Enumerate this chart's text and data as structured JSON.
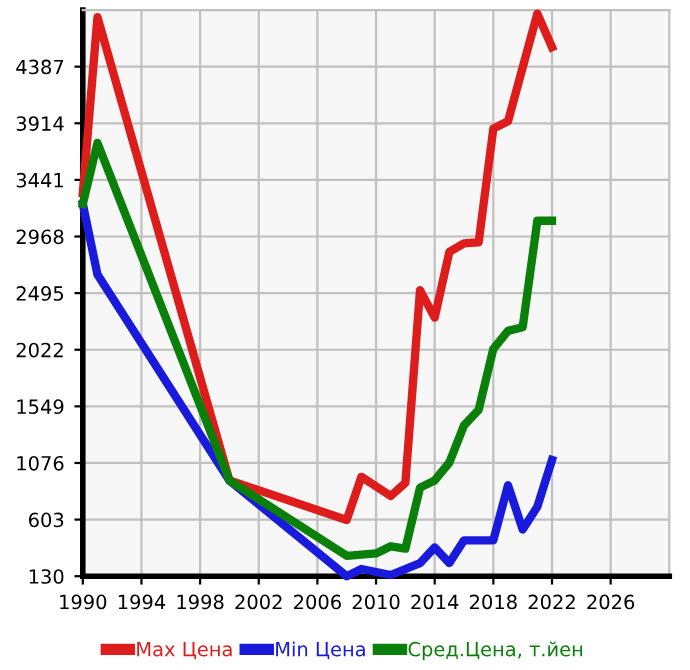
{
  "chart_data": {
    "type": "line",
    "xlim": [
      1990,
      2030
    ],
    "xticks": [
      1990,
      1994,
      1998,
      2002,
      2006,
      2010,
      2014,
      2018,
      2022,
      2026
    ],
    "ylim": [
      130,
      4860
    ],
    "yticks": [
      130,
      603,
      1076,
      1549,
      2022,
      2495,
      2968,
      3441,
      3914,
      4387
    ],
    "grid": true,
    "legend": "bottom",
    "line_style": "solid",
    "marker": "none",
    "series": [
      {
        "name": "Max Цена",
        "color": "#dd1c1c",
        "x": [
          1990,
          1991,
          2000,
          2008,
          2009,
          2011,
          2012,
          2013,
          2014,
          2015,
          2016,
          2017,
          2018,
          2019,
          2021,
          2022
        ],
        "values": [
          3330,
          4800,
          930,
          600,
          960,
          800,
          910,
          2520,
          2290,
          2840,
          2910,
          2920,
          3870,
          3930,
          4830,
          4550
        ]
      },
      {
        "name": "Min Цена",
        "color": "#1a1adc",
        "x": [
          1990,
          1991,
          2000,
          2008,
          2009,
          2011,
          2013,
          2014,
          2015,
          2016,
          2017,
          2018,
          2019,
          2020,
          2021,
          2022
        ],
        "values": [
          3240,
          2650,
          930,
          130,
          190,
          140,
          240,
          370,
          240,
          430,
          430,
          430,
          890,
          520,
          710,
          1100
        ]
      },
      {
        "name": "Сред.Цена, т.йен",
        "color": "#0a7f0a",
        "x": [
          1990,
          1991,
          2000,
          2008,
          2010,
          2011,
          2012,
          2013,
          2014,
          2015,
          2016,
          2017,
          2018,
          2019,
          2020,
          2021,
          2022
        ],
        "values": [
          3240,
          3750,
          930,
          300,
          320,
          380,
          360,
          870,
          930,
          1080,
          1390,
          1520,
          2030,
          2180,
          2210,
          3100,
          3100
        ]
      }
    ]
  }
}
